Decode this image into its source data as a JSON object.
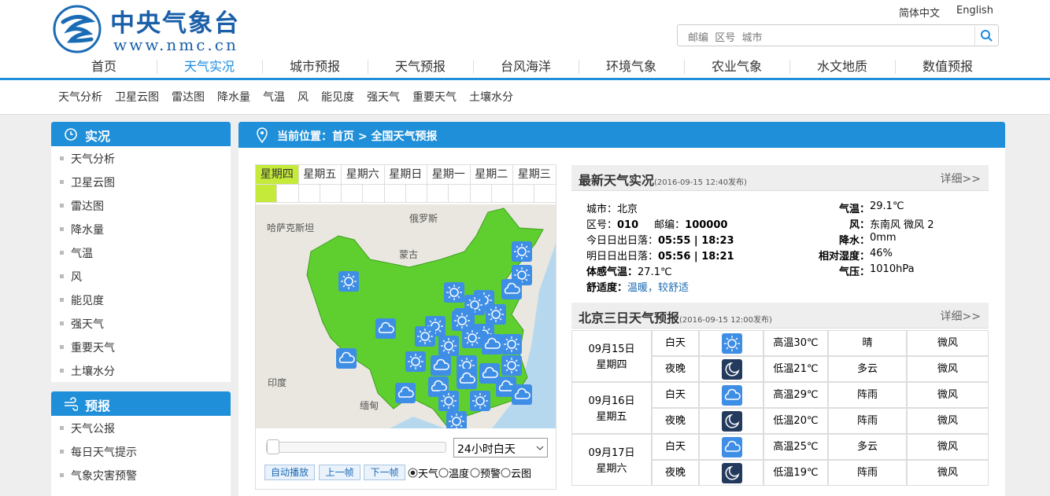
{
  "header": {
    "title": "中央气象台",
    "url": "www.nmc.cn",
    "languages": [
      "简体中文",
      "English"
    ],
    "search_placeholder": "邮编  区号  城市"
  },
  "nav": [
    "首页",
    "天气实况",
    "城市预报",
    "天气预报",
    "台风海洋",
    "环境气象",
    "农业气象",
    "水文地质",
    "数值预报"
  ],
  "subnav": [
    "天气分析",
    "卫星云图",
    "雷达图",
    "降水量",
    "气温",
    "风",
    "能见度",
    "强天气",
    "重要天气",
    "土壤水分"
  ],
  "sidebar": [
    {
      "title": "实况",
      "items": [
        "天气分析",
        "卫星云图",
        "雷达图",
        "降水量",
        "气温",
        "风",
        "能见度",
        "强天气",
        "重要天气",
        "土壤水分"
      ]
    },
    {
      "title": "预报",
      "items": [
        "天气公报",
        "每日天气提示",
        "气象灾害预警"
      ]
    }
  ],
  "breadcrumb": "当前位置：首页 > 全国天气预报",
  "map": {
    "days": [
      "星期四",
      "星期五",
      "星期六",
      "星期日",
      "星期一",
      "星期二",
      "星期三"
    ],
    "labels": [
      "哈萨克斯坦",
      "俄罗斯",
      "蒙古",
      "印度",
      "缅甸"
    ],
    "select": "24小时白天",
    "buttons": [
      "自动播放",
      "上一帧",
      "下一帧"
    ],
    "radios": [
      "天气",
      "温度",
      "预警",
      "云图"
    ]
  },
  "current": {
    "title": "最新天气实况",
    "time": "(2016-09-15 12:40发布)",
    "more": "详细>>",
    "left": [
      [
        {
          "label": "城市：",
          "value": "北京"
        }
      ],
      [
        {
          "label": "区号：",
          "value": "010"
        },
        {
          "label": "邮编：",
          "value": "100000"
        }
      ],
      [
        {
          "label": "今日日出日落：",
          "value": "05:55 | 18:23"
        }
      ],
      [
        {
          "label": "明日日出日落：",
          "value": "05:56 | 18:21"
        }
      ],
      [
        {
          "label": "体感气温：",
          "value": "27.1℃"
        }
      ],
      [
        {
          "label": "舒适度：",
          "value": "温暖，较舒适"
        }
      ]
    ],
    "right": [
      {
        "label": "气温：",
        "value": "29.1℃"
      },
      {
        "label": "风：",
        "value": "东南风 微风 2"
      },
      {
        "label": "降水：",
        "value": "0mm"
      },
      {
        "label": "相对湿度：",
        "value": "46%"
      },
      {
        "label": "气压：",
        "value": "1010hPa"
      }
    ]
  },
  "forecast": {
    "title": "北京三日天气预报",
    "time": "(2016-09-15 12:00发布)",
    "more": "详细>>",
    "days": [
      {
        "date": "09月15日",
        "weekday": "星期四",
        "periods": [
          {
            "period": "白天",
            "temp": "高温30℃",
            "weather": "晴",
            "wind": "微风"
          },
          {
            "period": "夜晚",
            "temp": "低温21℃",
            "weather": "多云",
            "wind": "微风"
          }
        ]
      },
      {
        "date": "09月16日",
        "weekday": "星期五",
        "periods": [
          {
            "period": "白天",
            "temp": "高温29℃",
            "weather": "阵雨",
            "wind": "微风"
          },
          {
            "period": "夜晚",
            "temp": "低温20℃",
            "weather": "阵雨",
            "wind": "微风"
          }
        ]
      },
      {
        "date": "09月17日",
        "weekday": "星期六",
        "periods": [
          {
            "period": "白天",
            "temp": "高温25℃",
            "weather": "多云",
            "wind": "微风"
          },
          {
            "period": "夜晚",
            "temp": "低温19℃",
            "weather": "阵雨",
            "wind": "微风"
          }
        ]
      }
    ]
  }
}
